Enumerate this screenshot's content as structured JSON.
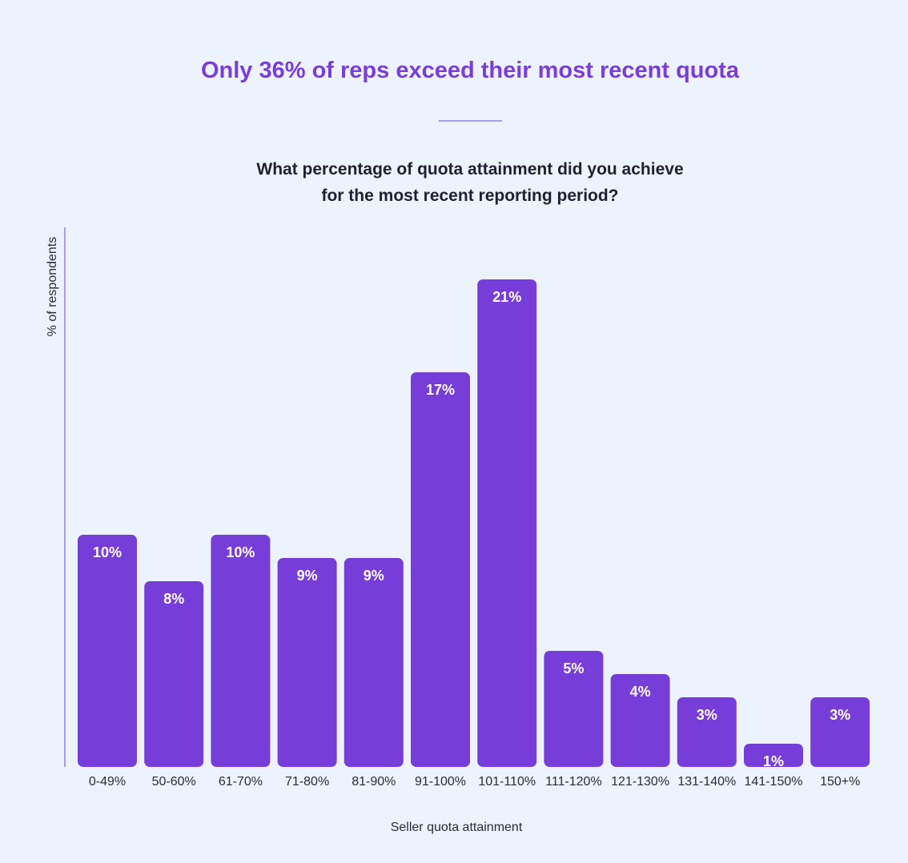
{
  "chart_data": {
    "type": "bar",
    "title": "Only 36% of reps exceed their most recent quota",
    "subtitle": [
      "What percentage of quota attainment did you achieve",
      "for the most recent reporting period?"
    ],
    "xlabel": "Seller quota attainment",
    "ylabel": "%  of respondents",
    "categories": [
      "0-49%",
      "50-60%",
      "61-70%",
      "71-80%",
      "81-90%",
      "91-100%",
      "101-110%",
      "111-120%",
      "121-130%",
      "131-140%",
      "141-150%",
      "150+%"
    ],
    "values": [
      10,
      8,
      10,
      9,
      9,
      17,
      21,
      5,
      4,
      3,
      1,
      3
    ],
    "data_labels": [
      "10%",
      "8%",
      "10%",
      "9%",
      "9%",
      "17%",
      "21%",
      "5%",
      "4%",
      "3%",
      "1%",
      "3%"
    ],
    "ylim": [
      0,
      21
    ],
    "grid": false,
    "colors": {
      "bar": "#773dd9",
      "title": "#7a3ddb",
      "axis": "#a99be8",
      "background": "#edf3fc"
    }
  }
}
